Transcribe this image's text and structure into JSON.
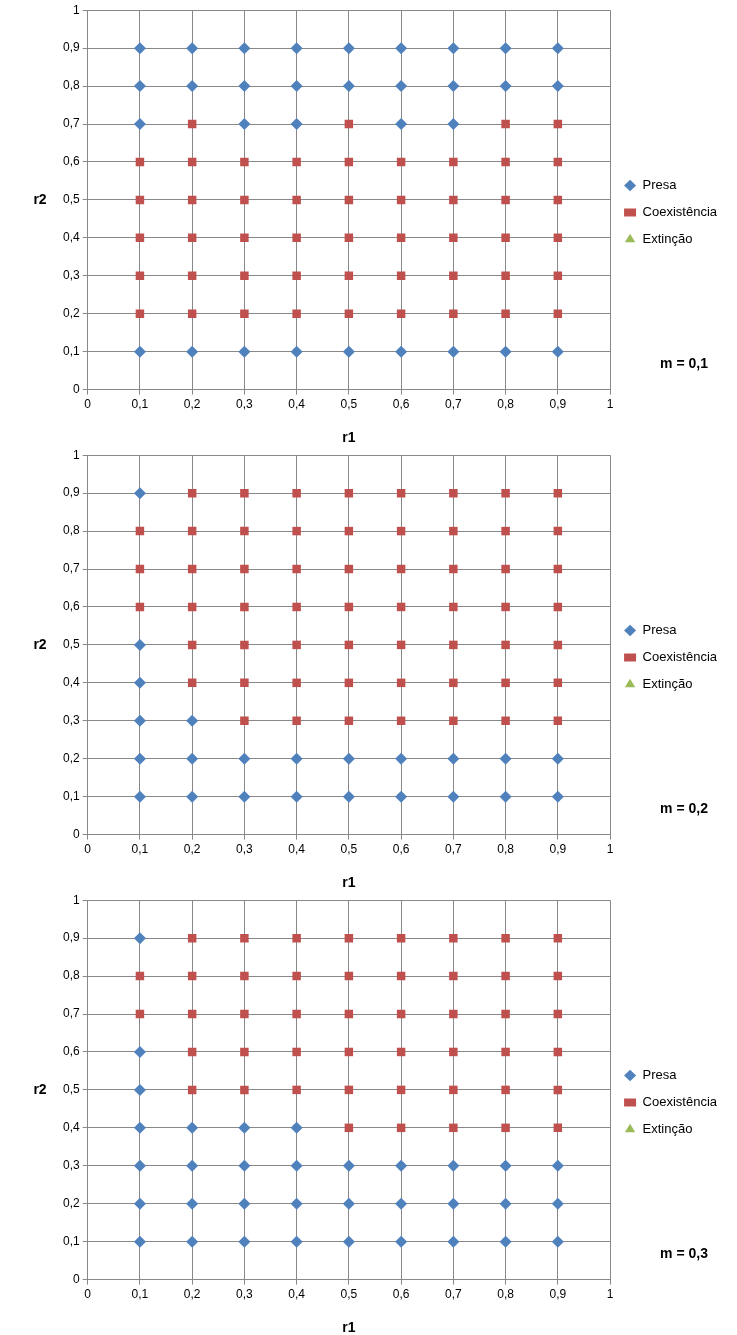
{
  "chart_data": [
    {
      "type": "scatter",
      "xlabel": "r1",
      "ylabel": "r2",
      "xlim": [
        0,
        1
      ],
      "ylim": [
        0,
        1
      ],
      "xticks": [
        {
          "value": 0,
          "label": "0"
        },
        {
          "value": 0.1,
          "label": "0,1"
        },
        {
          "value": 0.2,
          "label": "0,2"
        },
        {
          "value": 0.3,
          "label": "0,3"
        },
        {
          "value": 0.4,
          "label": "0,4"
        },
        {
          "value": 0.5,
          "label": "0,5"
        },
        {
          "value": 0.6,
          "label": "0,6"
        },
        {
          "value": 0.7,
          "label": "0,7"
        },
        {
          "value": 0.8,
          "label": "0,8"
        },
        {
          "value": 0.9,
          "label": "0,9"
        },
        {
          "value": 1,
          "label": "1"
        }
      ],
      "yticks": [
        {
          "value": 0,
          "label": "0"
        },
        {
          "value": 0.1,
          "label": "0,1"
        },
        {
          "value": 0.2,
          "label": "0,2"
        },
        {
          "value": 0.3,
          "label": "0,3"
        },
        {
          "value": 0.4,
          "label": "0,4"
        },
        {
          "value": 0.5,
          "label": "0,5"
        },
        {
          "value": 0.6,
          "label": "0,6"
        },
        {
          "value": 0.7,
          "label": "0,7"
        },
        {
          "value": 0.8,
          "label": "0,8"
        },
        {
          "value": 0.9,
          "label": "0,9"
        },
        {
          "value": 1,
          "label": "1"
        }
      ],
      "grid": true,
      "legend": "right",
      "annotations": [
        "m = 0,1"
      ],
      "series": [
        {
          "name": "Presa",
          "color": "#4f81bd",
          "marker": "diamond",
          "x": [
            0.1,
            0.2,
            0.3,
            0.4,
            0.5,
            0.6,
            0.7,
            0.8,
            0.9,
            0.1,
            0.2,
            0.3,
            0.4,
            0.5,
            0.6,
            0.7,
            0.8,
            0.9,
            0.1,
            0.3,
            0.4,
            0.6,
            0.7,
            0.1,
            0.2,
            0.3,
            0.4,
            0.5,
            0.6,
            0.7,
            0.8,
            0.9
          ],
          "values": [
            0.9,
            0.9,
            0.9,
            0.9,
            0.9,
            0.9,
            0.9,
            0.9,
            0.9,
            0.8,
            0.8,
            0.8,
            0.8,
            0.8,
            0.8,
            0.8,
            0.8,
            0.8,
            0.7,
            0.7,
            0.7,
            0.7,
            0.7,
            0.1,
            0.1,
            0.1,
            0.1,
            0.1,
            0.1,
            0.1,
            0.1,
            0.1
          ]
        },
        {
          "name": "Coexistência",
          "color": "#c0504d",
          "marker": "square",
          "x": [
            0.2,
            0.5,
            0.8,
            0.9,
            0.1,
            0.2,
            0.3,
            0.4,
            0.5,
            0.6,
            0.7,
            0.8,
            0.9,
            0.1,
            0.2,
            0.3,
            0.4,
            0.5,
            0.6,
            0.7,
            0.8,
            0.9,
            0.1,
            0.2,
            0.3,
            0.4,
            0.5,
            0.6,
            0.7,
            0.8,
            0.9,
            0.1,
            0.2,
            0.3,
            0.4,
            0.5,
            0.6,
            0.7,
            0.8,
            0.9,
            0.1,
            0.2,
            0.3,
            0.4,
            0.5,
            0.6,
            0.7,
            0.8,
            0.9
          ],
          "values": [
            0.7,
            0.7,
            0.7,
            0.7,
            0.6,
            0.6,
            0.6,
            0.6,
            0.6,
            0.6,
            0.6,
            0.6,
            0.6,
            0.5,
            0.5,
            0.5,
            0.5,
            0.5,
            0.5,
            0.5,
            0.5,
            0.5,
            0.4,
            0.4,
            0.4,
            0.4,
            0.4,
            0.4,
            0.4,
            0.4,
            0.4,
            0.3,
            0.3,
            0.3,
            0.3,
            0.3,
            0.3,
            0.3,
            0.3,
            0.3,
            0.2,
            0.2,
            0.2,
            0.2,
            0.2,
            0.2,
            0.2,
            0.2,
            0.2
          ]
        },
        {
          "name": "Extinção",
          "color": "#9bbb59",
          "marker": "triangle"
        }
      ]
    },
    {
      "type": "scatter",
      "xlabel": "r1",
      "ylabel": "r2",
      "xlim": [
        0,
        1
      ],
      "ylim": [
        0,
        1
      ],
      "xticks": [
        {
          "value": 0,
          "label": "0"
        },
        {
          "value": 0.1,
          "label": "0,1"
        },
        {
          "value": 0.2,
          "label": "0,2"
        },
        {
          "value": 0.3,
          "label": "0,3"
        },
        {
          "value": 0.4,
          "label": "0,4"
        },
        {
          "value": 0.5,
          "label": "0,5"
        },
        {
          "value": 0.6,
          "label": "0,6"
        },
        {
          "value": 0.7,
          "label": "0,7"
        },
        {
          "value": 0.8,
          "label": "0,8"
        },
        {
          "value": 0.9,
          "label": "0,9"
        },
        {
          "value": 1,
          "label": "1"
        }
      ],
      "yticks": [
        {
          "value": 0,
          "label": "0"
        },
        {
          "value": 0.1,
          "label": "0,1"
        },
        {
          "value": 0.2,
          "label": "0,2"
        },
        {
          "value": 0.3,
          "label": "0,3"
        },
        {
          "value": 0.4,
          "label": "0,4"
        },
        {
          "value": 0.5,
          "label": "0,5"
        },
        {
          "value": 0.6,
          "label": "0,6"
        },
        {
          "value": 0.7,
          "label": "0,7"
        },
        {
          "value": 0.8,
          "label": "0,8"
        },
        {
          "value": 0.9,
          "label": "0,9"
        },
        {
          "value": 1,
          "label": "1"
        }
      ],
      "grid": true,
      "legend": "right",
      "annotations": [
        "m = 0,2"
      ],
      "series": [
        {
          "name": "Presa",
          "color": "#4f81bd",
          "marker": "diamond",
          "x": [
            0.1,
            0.1,
            0.1,
            0.1,
            0.2,
            0.1,
            0.2,
            0.3,
            0.4,
            0.5,
            0.6,
            0.7,
            0.8,
            0.9,
            0.1,
            0.2,
            0.3,
            0.4,
            0.5,
            0.6,
            0.7,
            0.8,
            0.9
          ],
          "values": [
            0.9,
            0.5,
            0.4,
            0.3,
            0.3,
            0.2,
            0.2,
            0.2,
            0.2,
            0.2,
            0.2,
            0.2,
            0.2,
            0.2,
            0.1,
            0.1,
            0.1,
            0.1,
            0.1,
            0.1,
            0.1,
            0.1,
            0.1
          ]
        },
        {
          "name": "Coexistência",
          "color": "#c0504d",
          "marker": "square",
          "x": [
            0.2,
            0.3,
            0.4,
            0.5,
            0.6,
            0.7,
            0.8,
            0.9,
            0.1,
            0.2,
            0.3,
            0.4,
            0.5,
            0.6,
            0.7,
            0.8,
            0.9,
            0.1,
            0.2,
            0.3,
            0.4,
            0.5,
            0.6,
            0.7,
            0.8,
            0.9,
            0.1,
            0.2,
            0.3,
            0.4,
            0.5,
            0.6,
            0.7,
            0.8,
            0.9,
            0.2,
            0.3,
            0.4,
            0.5,
            0.6,
            0.7,
            0.8,
            0.9,
            0.2,
            0.3,
            0.4,
            0.5,
            0.6,
            0.7,
            0.8,
            0.9,
            0.3,
            0.4,
            0.5,
            0.6,
            0.7,
            0.8,
            0.9
          ],
          "values": [
            0.9,
            0.9,
            0.9,
            0.9,
            0.9,
            0.9,
            0.9,
            0.9,
            0.8,
            0.8,
            0.8,
            0.8,
            0.8,
            0.8,
            0.8,
            0.8,
            0.8,
            0.7,
            0.7,
            0.7,
            0.7,
            0.7,
            0.7,
            0.7,
            0.7,
            0.7,
            0.6,
            0.6,
            0.6,
            0.6,
            0.6,
            0.6,
            0.6,
            0.6,
            0.6,
            0.5,
            0.5,
            0.5,
            0.5,
            0.5,
            0.5,
            0.5,
            0.5,
            0.4,
            0.4,
            0.4,
            0.4,
            0.4,
            0.4,
            0.4,
            0.4,
            0.3,
            0.3,
            0.3,
            0.3,
            0.3,
            0.3,
            0.3
          ]
        },
        {
          "name": "Extinção",
          "color": "#9bbb59",
          "marker": "triangle"
        }
      ]
    },
    {
      "type": "scatter",
      "xlabel": "r1",
      "ylabel": "r2",
      "xlim": [
        0,
        1
      ],
      "ylim": [
        0,
        1
      ],
      "xticks": [
        {
          "value": 0,
          "label": "0"
        },
        {
          "value": 0.1,
          "label": "0,1"
        },
        {
          "value": 0.2,
          "label": "0,2"
        },
        {
          "value": 0.3,
          "label": "0,3"
        },
        {
          "value": 0.4,
          "label": "0,4"
        },
        {
          "value": 0.5,
          "label": "0,5"
        },
        {
          "value": 0.6,
          "label": "0,6"
        },
        {
          "value": 0.7,
          "label": "0,7"
        },
        {
          "value": 0.8,
          "label": "0,8"
        },
        {
          "value": 0.9,
          "label": "0,9"
        },
        {
          "value": 1,
          "label": "1"
        }
      ],
      "yticks": [
        {
          "value": 0,
          "label": "0"
        },
        {
          "value": 0.1,
          "label": "0,1"
        },
        {
          "value": 0.2,
          "label": "0,2"
        },
        {
          "value": 0.3,
          "label": "0,3"
        },
        {
          "value": 0.4,
          "label": "0,4"
        },
        {
          "value": 0.5,
          "label": "0,5"
        },
        {
          "value": 0.6,
          "label": "0,6"
        },
        {
          "value": 0.7,
          "label": "0,7"
        },
        {
          "value": 0.8,
          "label": "0,8"
        },
        {
          "value": 0.9,
          "label": "0,9"
        },
        {
          "value": 1,
          "label": "1"
        }
      ],
      "grid": true,
      "legend": "right",
      "annotations": [
        "m = 0,3"
      ],
      "series": [
        {
          "name": "Presa",
          "color": "#4f81bd",
          "marker": "diamond",
          "x": [
            0.1,
            0.1,
            0.1,
            0.1,
            0.2,
            0.3,
            0.4,
            0.1,
            0.2,
            0.3,
            0.4,
            0.5,
            0.6,
            0.7,
            0.8,
            0.9,
            0.1,
            0.2,
            0.3,
            0.4,
            0.5,
            0.6,
            0.7,
            0.8,
            0.9,
            0.1,
            0.2,
            0.3,
            0.4,
            0.5,
            0.6,
            0.7,
            0.8,
            0.9
          ],
          "values": [
            0.9,
            0.6,
            0.5,
            0.4,
            0.4,
            0.4,
            0.4,
            0.3,
            0.3,
            0.3,
            0.3,
            0.3,
            0.3,
            0.3,
            0.3,
            0.3,
            0.2,
            0.2,
            0.2,
            0.2,
            0.2,
            0.2,
            0.2,
            0.2,
            0.2,
            0.1,
            0.1,
            0.1,
            0.1,
            0.1,
            0.1,
            0.1,
            0.1,
            0.1
          ]
        },
        {
          "name": "Coexistência",
          "color": "#c0504d",
          "marker": "square",
          "x": [
            0.2,
            0.3,
            0.4,
            0.5,
            0.6,
            0.7,
            0.8,
            0.9,
            0.1,
            0.2,
            0.3,
            0.4,
            0.5,
            0.6,
            0.7,
            0.8,
            0.9,
            0.1,
            0.2,
            0.3,
            0.4,
            0.5,
            0.6,
            0.7,
            0.8,
            0.9,
            0.2,
            0.3,
            0.4,
            0.5,
            0.6,
            0.7,
            0.8,
            0.9,
            0.2,
            0.3,
            0.4,
            0.5,
            0.6,
            0.7,
            0.8,
            0.9,
            0.5,
            0.6,
            0.7,
            0.8,
            0.9
          ],
          "values": [
            0.9,
            0.9,
            0.9,
            0.9,
            0.9,
            0.9,
            0.9,
            0.9,
            0.8,
            0.8,
            0.8,
            0.8,
            0.8,
            0.8,
            0.8,
            0.8,
            0.8,
            0.7,
            0.7,
            0.7,
            0.7,
            0.7,
            0.7,
            0.7,
            0.7,
            0.7,
            0.6,
            0.6,
            0.6,
            0.6,
            0.6,
            0.6,
            0.6,
            0.6,
            0.5,
            0.5,
            0.5,
            0.5,
            0.5,
            0.5,
            0.5,
            0.5,
            0.4,
            0.4,
            0.4,
            0.4,
            0.4
          ]
        },
        {
          "name": "Extinção",
          "color": "#9bbb59",
          "marker": "triangle"
        }
      ]
    }
  ]
}
